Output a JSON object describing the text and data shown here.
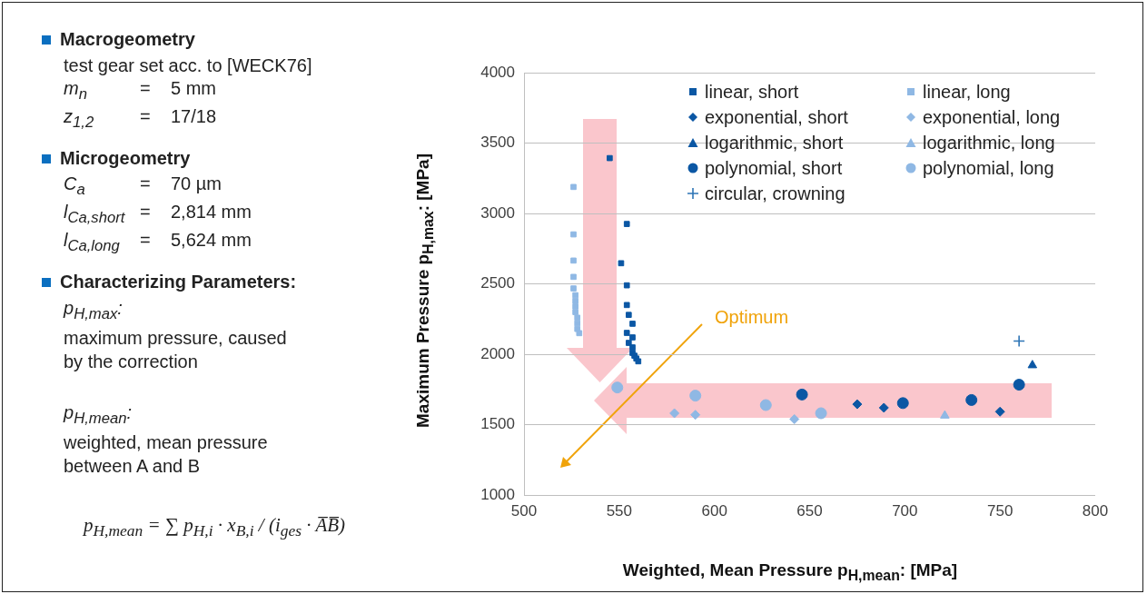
{
  "chart_data": [
    {
      "type": "other",
      "annotations": [
        "Macrogeometry",
        "test gear set acc. to  [WECK76]",
        "m$_{n}$ = 5 mm",
        "z$_{1,2}$ = 17/18",
        "Microgeometry",
        "C$_{a}$ = 70 µm",
        "l$_{Ca,short}$ = 2,814 mm",
        "l$_{Ca,long}$ = 5,624 mm",
        "Characterizing Parameters:",
        "p$_{H,max}$:",
        "maximum pressure, caused by the correction",
        "p$_{H,mean}$:",
        "weighted, mean pressure between A and B",
        "p$_{H,mean}$ = ∑ p$_{H,i}$ · x$_{B,i}$ / (i$_{ges}$ · A̅B̅)"
      ]
    },
    {
      "type": "scatter",
      "xlabel": "Weighted, Mean Pressure p$_{H,mean}$: [MPa]",
      "ylabel": "Maximum Pressure p$_{H,max}$: [MPa]",
      "xlim": [
        500,
        800
      ],
      "xticks": [
        500,
        550,
        600,
        650,
        700,
        750,
        800
      ],
      "ylim": [
        1000,
        4000
      ],
      "yticks": [
        1000,
        1500,
        2000,
        2500,
        3000,
        3500,
        4000
      ],
      "grid": "y",
      "legend": "top right",
      "annotations": [
        "Optimum"
      ],
      "series": [
        {
          "name": "linear, short",
          "color": "#0b57a4",
          "marker": "square",
          "x": [
            545,
            551,
            554,
            554,
            554,
            555,
            557,
            554,
            557,
            555,
            557,
            557,
            558,
            559,
            560
          ],
          "values": [
            3394,
            2647,
            2926,
            2490,
            2350,
            2280,
            2217,
            2152,
            2120,
            2081,
            2049,
            2010,
            1990,
            1970,
            1950
          ]
        },
        {
          "name": "linear, long",
          "color": "#8fb8e4",
          "marker": "square",
          "x": [
            526,
            526,
            526,
            526,
            526,
            527,
            527,
            527,
            527,
            528,
            528,
            528,
            529
          ],
          "values": [
            3189,
            2852,
            2666,
            2550,
            2468,
            2420,
            2380,
            2340,
            2300,
            2260,
            2220,
            2180,
            2150
          ]
        },
        {
          "name": "exponential, short",
          "color": "#0b57a4",
          "marker": "diamond",
          "x": [
            675,
            689,
            750
          ],
          "values": [
            1645,
            1620,
            1592
          ]
        },
        {
          "name": "exponential, long",
          "color": "#8fb8e4",
          "marker": "diamond",
          "x": [
            579,
            590,
            642
          ],
          "values": [
            1581,
            1570,
            1539
          ]
        },
        {
          "name": "logarithmic, short",
          "color": "#0b57a4",
          "marker": "triangle",
          "x": [
            767
          ],
          "values": [
            1922
          ]
        },
        {
          "name": "logarithmic, long",
          "color": "#8fb8e4",
          "marker": "triangle",
          "x": [
            721
          ],
          "values": [
            1564
          ]
        },
        {
          "name": "polynomial, short",
          "color": "#0b57a4",
          "marker": "circle",
          "x": [
            646,
            699,
            735,
            760
          ],
          "values": [
            1714,
            1653,
            1675,
            1784
          ]
        },
        {
          "name": "polynomial, long",
          "color": "#8fb8e4",
          "marker": "circle",
          "x": [
            549,
            590,
            627,
            656
          ],
          "values": [
            1764,
            1706,
            1639,
            1581
          ]
        },
        {
          "name": "circular, crowning",
          "color": "#2e75b6",
          "marker": "cross",
          "x": [
            760
          ],
          "values": [
            2094
          ]
        }
      ]
    }
  ]
}
